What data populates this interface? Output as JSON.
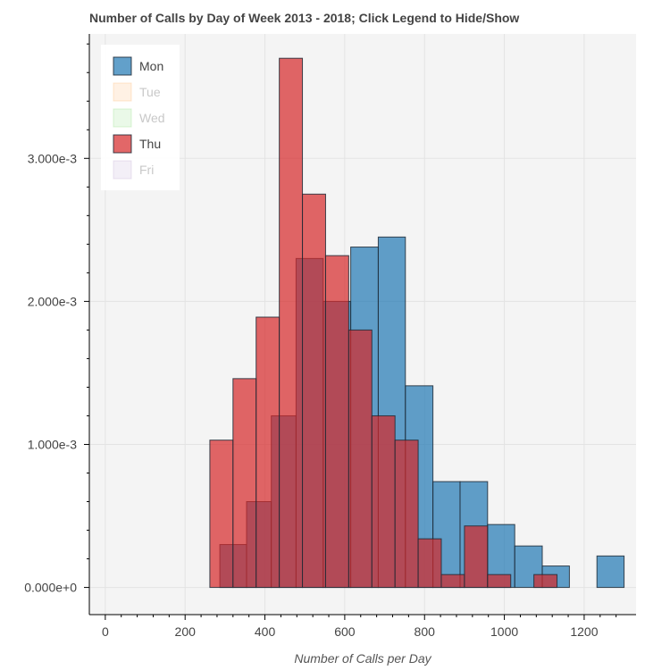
{
  "chart_data": {
    "type": "bar",
    "title": "Number of Calls by Day of Week 2013 - 2018; Click Legend to Hide/Show",
    "xlabel": "Number of Calls per Day",
    "ylabel": "",
    "xlim": [
      -40,
      1330
    ],
    "ylim": [
      -0.00019,
      0.00387
    ],
    "x_ticks": [
      0,
      200,
      400,
      600,
      800,
      1000,
      1200
    ],
    "x_tick_labels": [
      "0",
      "200",
      "400",
      "600",
      "800",
      "1000",
      "1200"
    ],
    "y_ticks": [
      0,
      0.001,
      0.002,
      0.003
    ],
    "y_tick_labels": [
      "0.000e+0",
      "1.000e-3",
      "2.000e-3",
      "3.000e-3"
    ],
    "grid": true,
    "legend_position": "top-left",
    "series": [
      {
        "name": "Mon",
        "color": "#1f77b4",
        "visible": true,
        "bins": [
          {
            "left": 287,
            "right": 354,
            "value": 0.0003
          },
          {
            "left": 354,
            "right": 416,
            "value": 0.0006
          },
          {
            "left": 416,
            "right": 478,
            "value": 0.0012
          },
          {
            "left": 478,
            "right": 546,
            "value": 0.0023
          },
          {
            "left": 546,
            "right": 615,
            "value": 0.002
          },
          {
            "left": 615,
            "right": 684,
            "value": 0.00238
          },
          {
            "left": 684,
            "right": 752,
            "value": 0.00245
          },
          {
            "left": 752,
            "right": 821,
            "value": 0.00141
          },
          {
            "left": 821,
            "right": 889,
            "value": 0.00074
          },
          {
            "left": 889,
            "right": 958,
            "value": 0.00074
          },
          {
            "left": 958,
            "right": 1026,
            "value": 0.00044
          },
          {
            "left": 1026,
            "right": 1095,
            "value": 0.00029
          },
          {
            "left": 1095,
            "right": 1163,
            "value": 0.00015
          },
          {
            "left": 1163,
            "right": 1232,
            "value": 0.0
          },
          {
            "left": 1232,
            "right": 1300,
            "value": 0.00022
          }
        ]
      },
      {
        "name": "Tue",
        "color": "#ffbb78",
        "visible": false,
        "bins": []
      },
      {
        "name": "Wed",
        "color": "#98df8a",
        "visible": false,
        "bins": []
      },
      {
        "name": "Thu",
        "color": "#d62728",
        "visible": true,
        "bins": [
          {
            "left": 262,
            "right": 320,
            "value": 0.00103
          },
          {
            "left": 320,
            "right": 378,
            "value": 0.00146
          },
          {
            "left": 378,
            "right": 436,
            "value": 0.00189
          },
          {
            "left": 436,
            "right": 494,
            "value": 0.0037
          },
          {
            "left": 494,
            "right": 552,
            "value": 0.00275
          },
          {
            "left": 552,
            "right": 610,
            "value": 0.00232
          },
          {
            "left": 610,
            "right": 668,
            "value": 0.0018
          },
          {
            "left": 668,
            "right": 726,
            "value": 0.0012
          },
          {
            "left": 726,
            "right": 784,
            "value": 0.00103
          },
          {
            "left": 784,
            "right": 842,
            "value": 0.00034
          },
          {
            "left": 842,
            "right": 900,
            "value": 9e-05
          },
          {
            "left": 900,
            "right": 958,
            "value": 0.00043
          },
          {
            "left": 958,
            "right": 1016,
            "value": 9e-05
          },
          {
            "left": 1016,
            "right": 1074,
            "value": 0.0
          },
          {
            "left": 1074,
            "right": 1132,
            "value": 9e-05
          }
        ]
      },
      {
        "name": "Fri",
        "color": "#c5b0d5",
        "visible": false,
        "bins": []
      }
    ]
  }
}
